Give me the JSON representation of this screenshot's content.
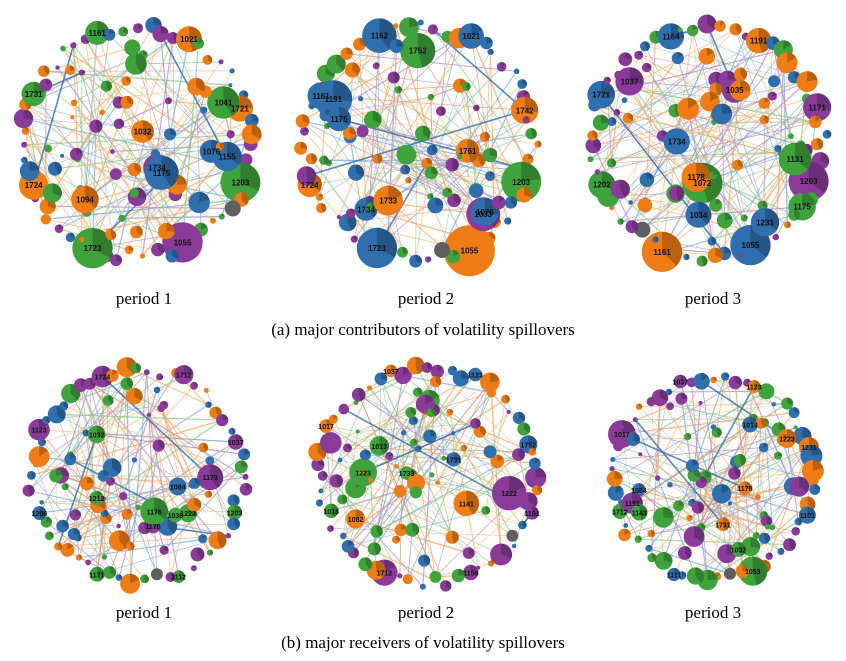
{
  "colors": {
    "green": "#3fa33c",
    "orange": "#f07d13",
    "purple": "#8a3b9a",
    "blue": "#2f6fae",
    "gray": "#5f5f5f",
    "edge_palette": [
      "#f4a15a",
      "#8fc98a",
      "#b58cc4",
      "#7ea8d6",
      "#f7c08a"
    ]
  },
  "section_a": {
    "caption": "(a) major contributors of volatility spillovers",
    "panels": [
      {
        "period": "period 1",
        "labels": [
          "1203",
          "1055",
          "1723",
          "1724",
          "1731",
          "1161",
          "1021",
          "1721",
          "1155",
          "1041",
          "1734",
          "1032",
          "1076",
          "1175",
          "1094"
        ]
      },
      {
        "period": "period 2",
        "labels": [
          "1203",
          "1055",
          "1723",
          "1724",
          "1161",
          "1162",
          "1021",
          "1742",
          "1191",
          "1761",
          "1734",
          "1752",
          "1733",
          "1033",
          "1076",
          "1175"
        ]
      },
      {
        "period": "period 3",
        "labels": [
          "1203",
          "1055",
          "1161",
          "1202",
          "1721",
          "1164",
          "1191",
          "1171",
          "1072",
          "1037",
          "1734",
          "1231",
          "1035",
          "1034",
          "1178",
          "1131",
          "1175"
        ]
      }
    ]
  },
  "section_b": {
    "caption": "(b) major receivers of volatility spillovers",
    "panels": [
      {
        "period": "period 1",
        "labels": [
          "1203",
          "1112",
          "1171",
          "1206",
          "1123",
          "1724",
          "1712",
          "1037",
          "1084",
          "1223",
          "1032",
          "1212",
          "1175",
          "1173",
          "1176",
          "1036"
        ]
      },
      {
        "period": "period 2",
        "labels": [
          "1101",
          "1156",
          "1712",
          "1018",
          "1017",
          "1037",
          "1123",
          "1752",
          "1733",
          "1013",
          "1223",
          "1222",
          "1731",
          "1141",
          "1082"
        ]
      },
      {
        "period": "period 3",
        "labels": [
          "1101",
          "1053",
          "1111",
          "1712",
          "1017",
          "1037",
          "1123",
          "1231",
          "1084",
          "1014",
          "1223",
          "1151",
          "1731",
          "1178",
          "1143",
          "1032"
        ]
      }
    ]
  }
}
